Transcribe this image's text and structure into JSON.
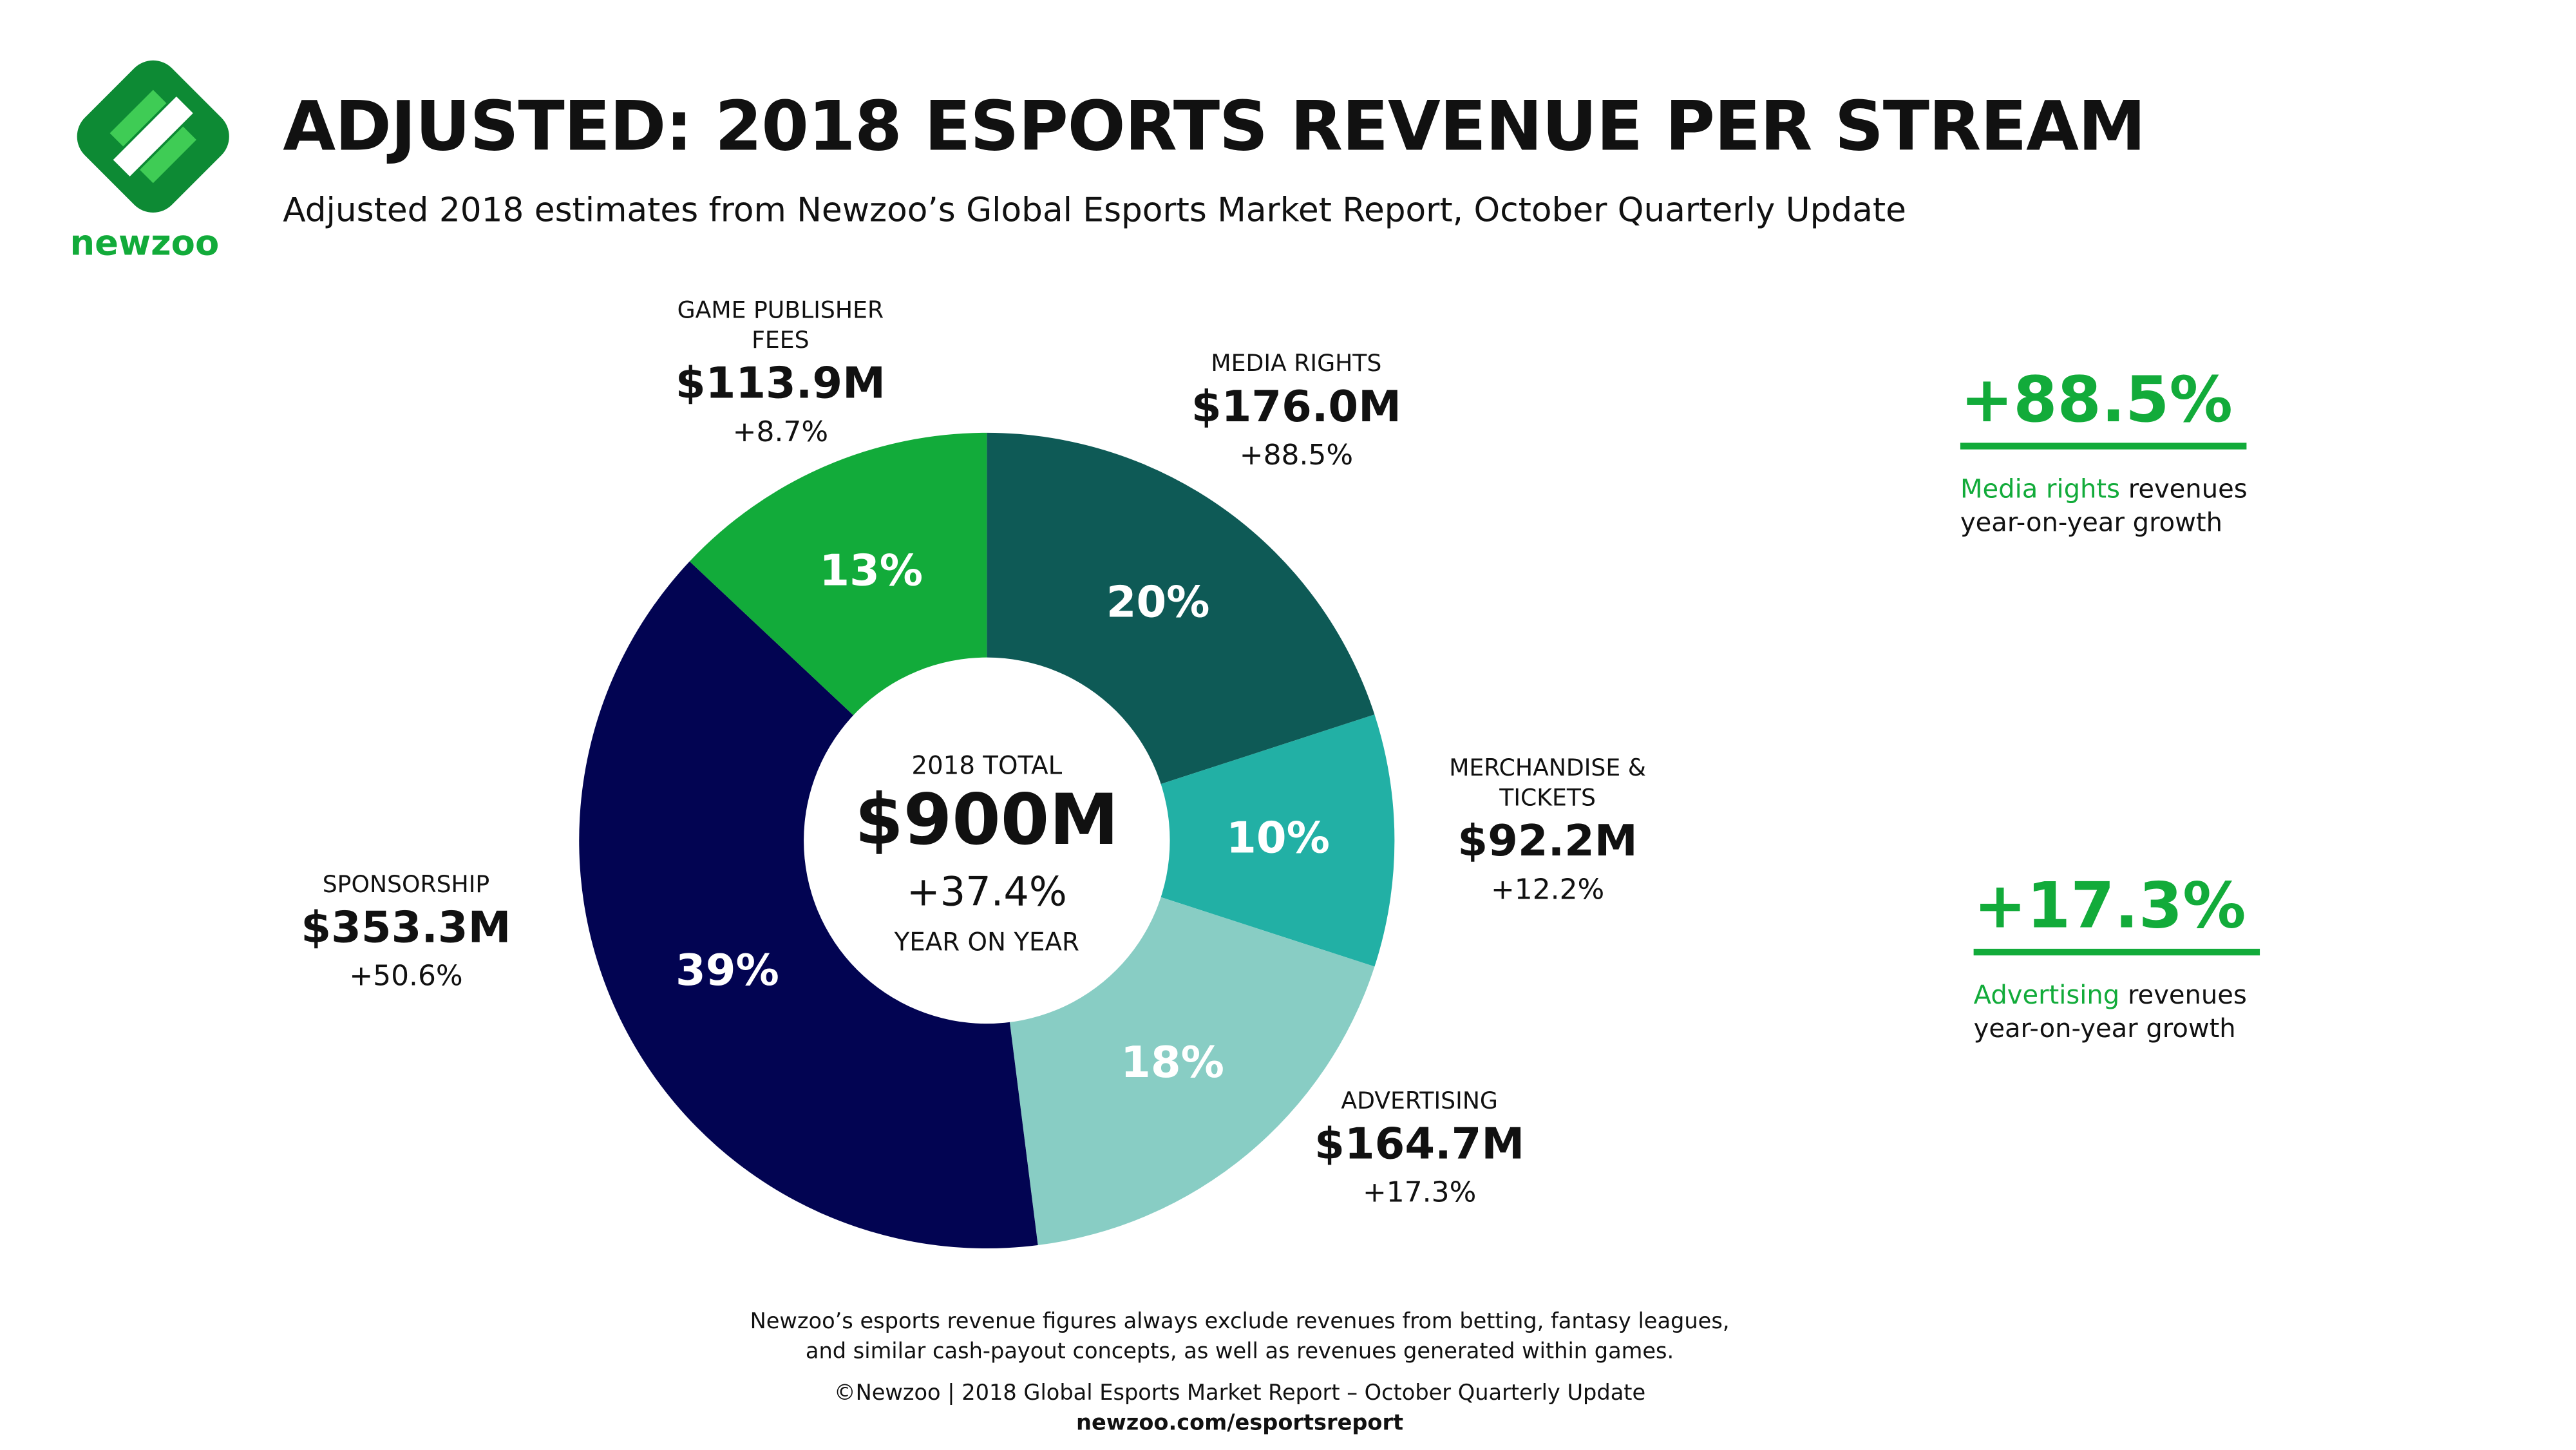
{
  "header": {
    "logo_text": "newzoo",
    "title": "ADJUSTED: 2018 ESPORTS REVENUE PER STREAM",
    "subtitle": "Adjusted 2018 estimates from Newzoo’s Global Esports Market Report, October Quarterly Update"
  },
  "chart_data": {
    "type": "pie",
    "donut": true,
    "categories": [
      "MEDIA RIGHTS",
      "MERCHANDISE & TICKETS",
      "ADVERTISING",
      "SPONSORSHIP",
      "GAME PUBLISHER FEES"
    ],
    "values": [
      20,
      10,
      18,
      39,
      13
    ],
    "value_labels": [
      "20%",
      "10%",
      "18%",
      "39%",
      "13%"
    ],
    "colors": [
      "#0e5a56",
      "#22b0a5",
      "#88cdc4",
      "#020452",
      "#12ab3a"
    ],
    "amounts": [
      "$176.0M",
      "$92.2M",
      "$164.7M",
      "$353.3M",
      "$113.9M"
    ],
    "growth": [
      "+88.5%",
      "+12.2%",
      "+17.3%",
      "+50.6%",
      "+8.7%"
    ],
    "center": {
      "caption": "2018 TOTAL",
      "total": "$900M",
      "change": "+37.4%",
      "change_caption": "YEAR ON YEAR"
    }
  },
  "callouts": [
    {
      "value": "+88.5%",
      "highlight": "Media rights",
      "text": "revenues year-on-year growth"
    },
    {
      "value": "+17.3%",
      "highlight": "Advertising",
      "text": "revenues year-on-year growth"
    }
  ],
  "footer": {
    "note": "Newzoo’s esports revenue figures always exclude revenues from betting, fantasy leagues, and similar cash-payout concepts, as well as revenues generated within games.",
    "copyright": "©Newzoo | 2018 Global Esports Market Report – October Quarterly Update",
    "url": "newzoo.com/esportsreport"
  }
}
